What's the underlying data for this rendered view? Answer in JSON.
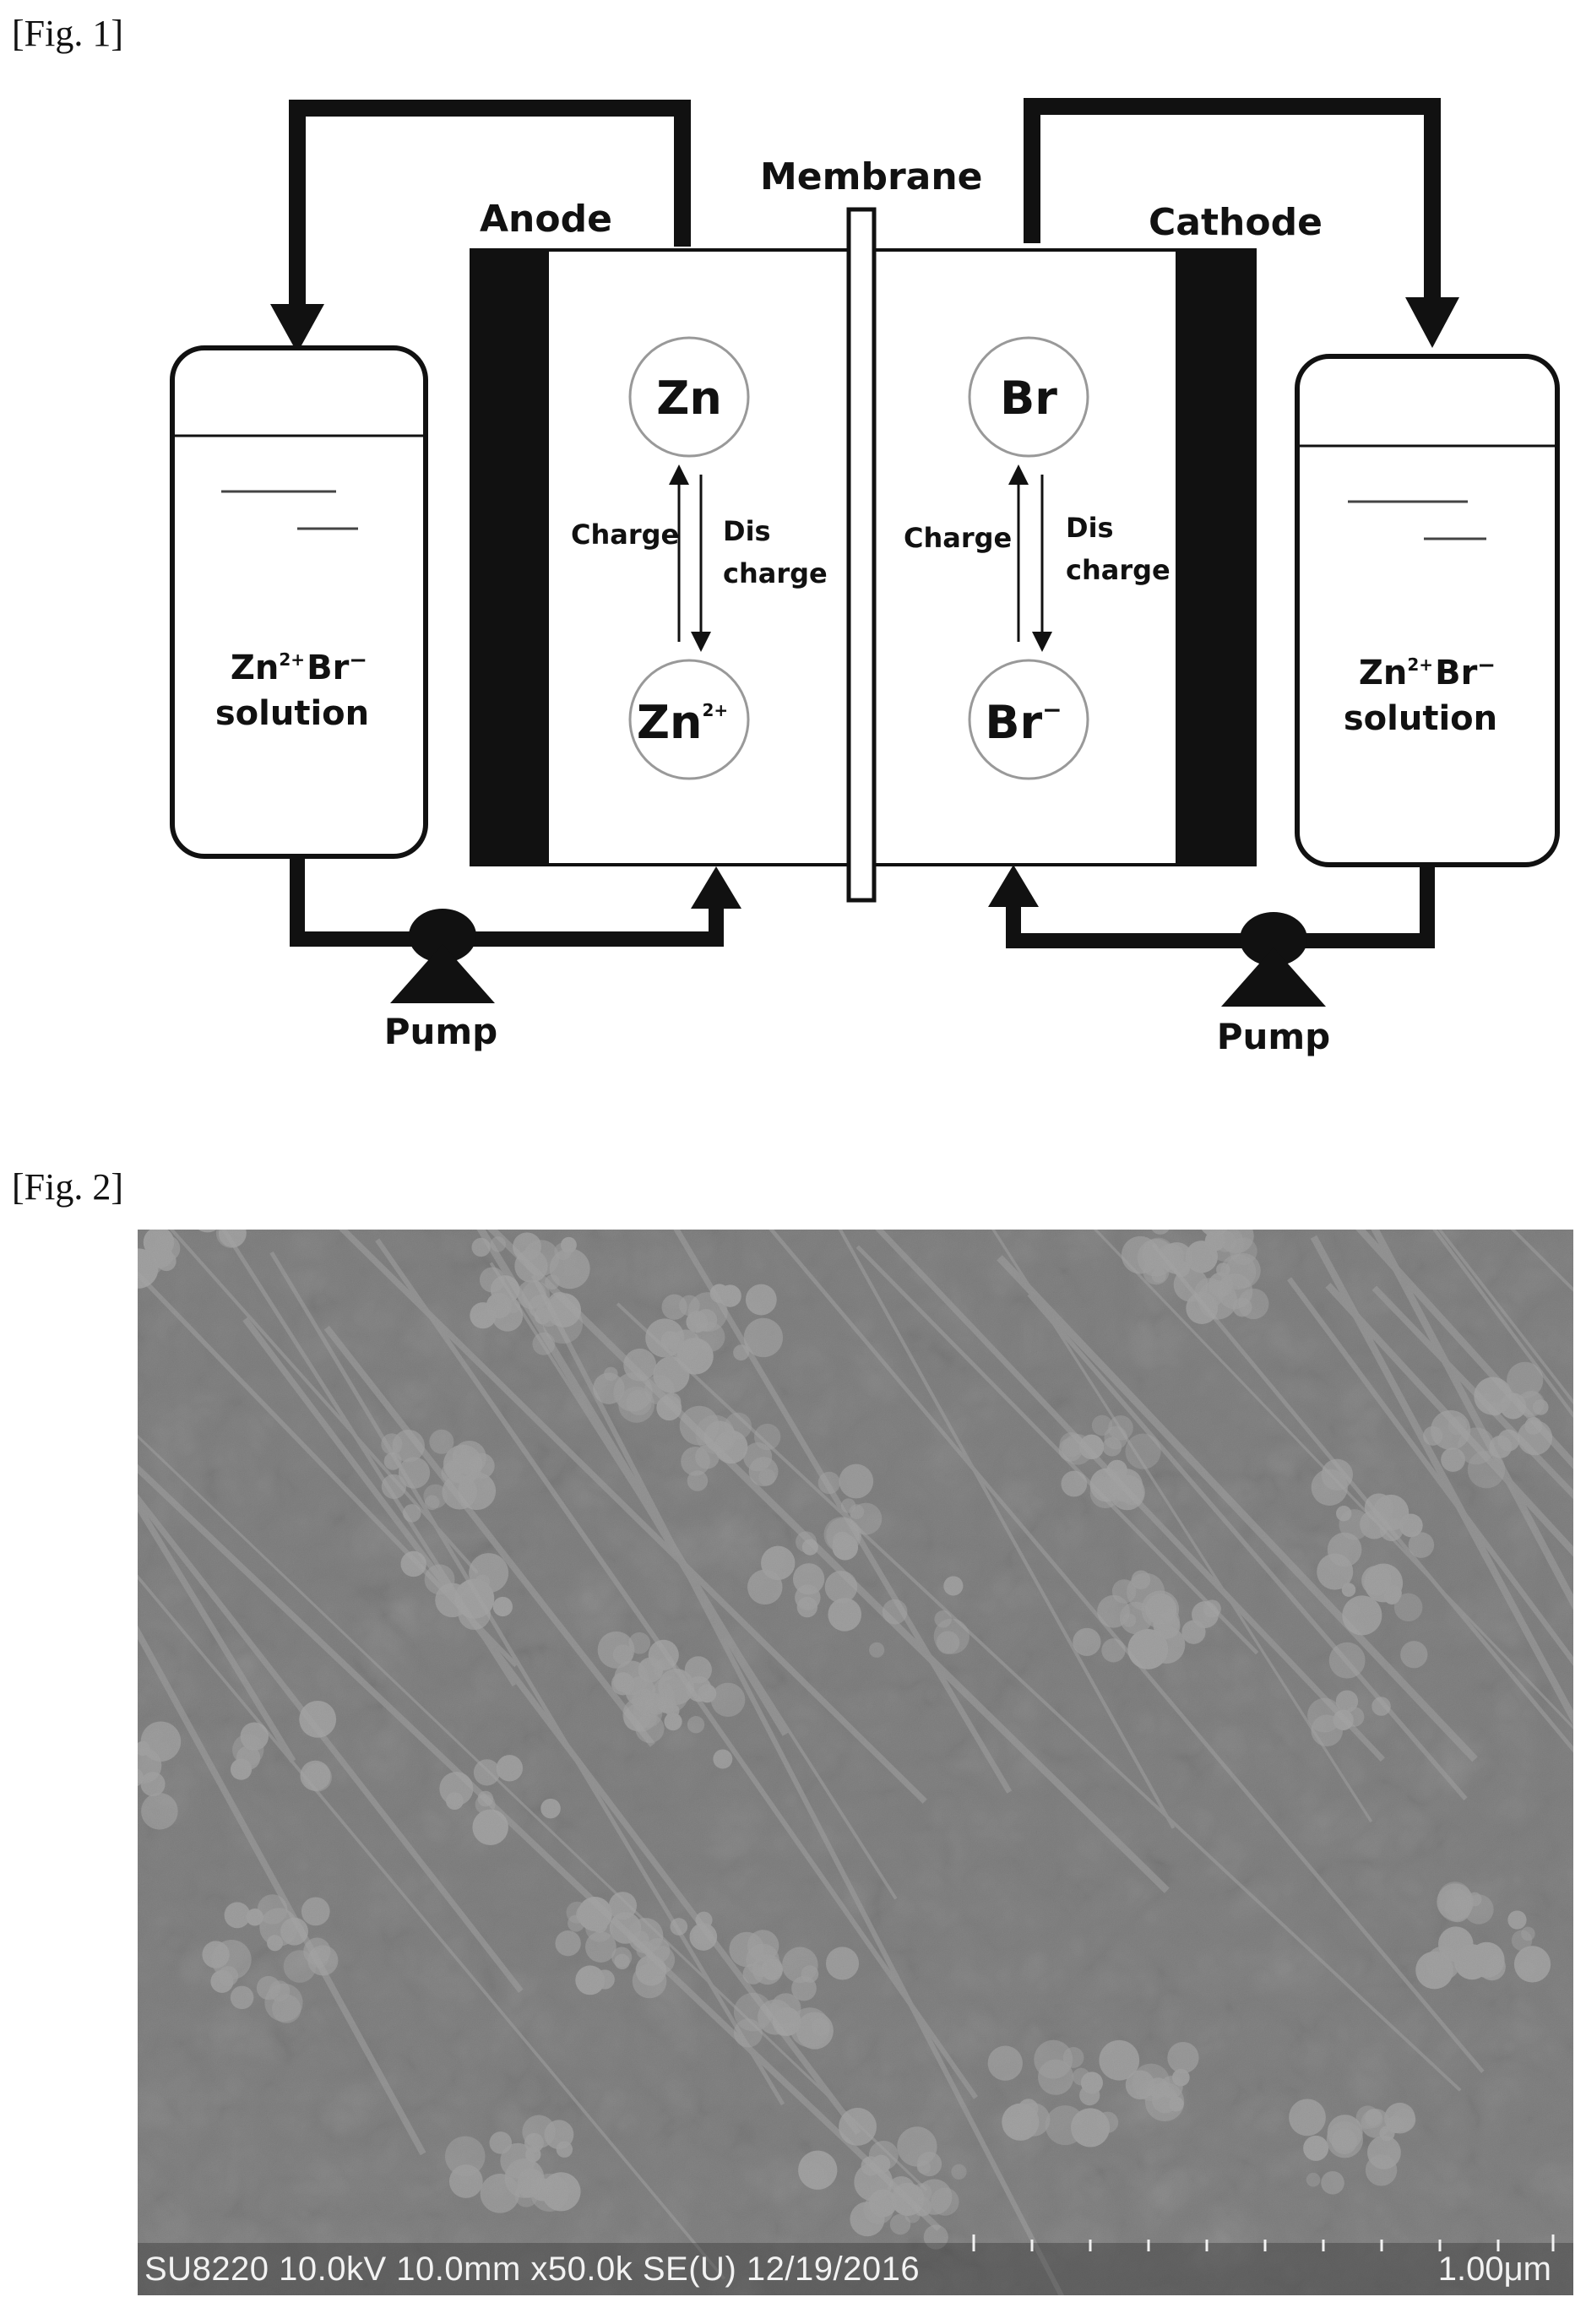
{
  "figures": {
    "fig1_label": "[Fig. 1]",
    "fig2_label": "[Fig. 2]"
  },
  "fig1": {
    "membrane": "Membrane",
    "anode": "Anode",
    "cathode": "Cathode",
    "left_tank": {
      "line1_base": "Zn",
      "line1_sup": "2+",
      "line1_ion": "Br",
      "line1_ion_sup": "−",
      "line2": "solution"
    },
    "right_tank": {
      "line1_base": "Zn",
      "line1_sup": "2+",
      "line1_ion": "Br",
      "line1_ion_sup": "−",
      "line2": "solution"
    },
    "anode_top_species": "Zn",
    "anode_bottom_species": "Zn",
    "anode_bottom_sup": "2+",
    "cathode_top_species": "Br",
    "cathode_bottom_species": "Br",
    "cathode_bottom_sup": "−",
    "charge_left": "Charge",
    "discharge_left_1": "Dis",
    "discharge_left_2": "charge",
    "charge_right": "Charge",
    "discharge_right_1": "Dis",
    "discharge_right_2": "charge",
    "pump_left": "Pump",
    "pump_right": "Pump"
  },
  "fig2": {
    "caption": "SU8220 10.0kV 10.0mm x50.0k SE(U) 12/19/2016",
    "scale": "1.00μm"
  }
}
